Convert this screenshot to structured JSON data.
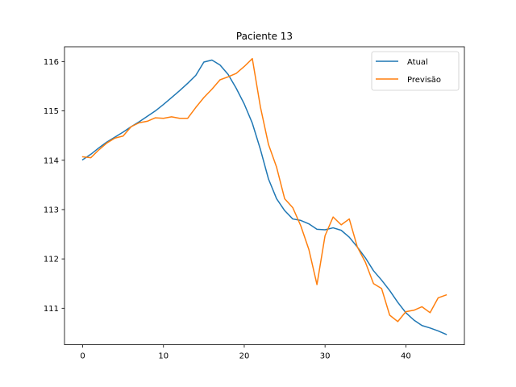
{
  "chart_data": {
    "type": "line",
    "title": "Paciente 13",
    "xlabel": "",
    "ylabel": "",
    "xlim": [
      -2.25,
      47.25
    ],
    "ylim": [
      110.26,
      116.3
    ],
    "xticks": [
      0,
      10,
      20,
      30,
      40
    ],
    "yticks": [
      111,
      112,
      113,
      114,
      115,
      116
    ],
    "grid": false,
    "legend": "top-right",
    "series": [
      {
        "name": "Atual",
        "color": "#1f77b4",
        "x": [
          0,
          1,
          2,
          3,
          4,
          5,
          6,
          7,
          8,
          9,
          10,
          11,
          12,
          13,
          14,
          15,
          16,
          17,
          18,
          19,
          20,
          21,
          22,
          23,
          24,
          25,
          26,
          27,
          28,
          29,
          30,
          31,
          32,
          33,
          34,
          35,
          36,
          37,
          38,
          39,
          40,
          41,
          42,
          43,
          44,
          45
        ],
        "y": [
          114.01,
          114.12,
          114.25,
          114.37,
          114.47,
          114.57,
          114.68,
          114.78,
          114.89,
          115.0,
          115.13,
          115.27,
          115.41,
          115.56,
          115.72,
          115.99,
          116.03,
          115.93,
          115.74,
          115.46,
          115.14,
          114.75,
          114.22,
          113.62,
          113.22,
          112.98,
          112.81,
          112.78,
          112.71,
          112.6,
          112.59,
          112.63,
          112.58,
          112.44,
          112.24,
          112.02,
          111.76,
          111.57,
          111.36,
          111.12,
          110.91,
          110.76,
          110.65,
          110.6,
          110.54,
          110.47
        ]
      },
      {
        "name": "Previsão",
        "color": "#ff7f0e",
        "x": [
          0,
          1,
          2,
          3,
          4,
          5,
          6,
          7,
          8,
          9,
          10,
          11,
          12,
          13,
          14,
          15,
          16,
          17,
          18,
          19,
          20,
          21,
          22,
          23,
          24,
          25,
          26,
          27,
          28,
          29,
          30,
          31,
          32,
          33,
          34,
          35,
          36,
          37,
          38,
          39,
          40,
          41,
          42,
          43,
          44,
          45
        ],
        "y": [
          114.07,
          114.05,
          114.21,
          114.35,
          114.45,
          114.49,
          114.68,
          114.76,
          114.79,
          114.86,
          114.85,
          114.88,
          114.85,
          114.85,
          115.07,
          115.27,
          115.44,
          115.63,
          115.69,
          115.76,
          115.9,
          116.06,
          115.08,
          114.32,
          113.86,
          113.22,
          113.04,
          112.67,
          112.19,
          111.48,
          112.47,
          112.85,
          112.69,
          112.81,
          112.24,
          111.93,
          111.5,
          111.4,
          110.86,
          110.73,
          110.93,
          110.96,
          111.03,
          110.91,
          111.21,
          111.27
        ]
      }
    ]
  }
}
